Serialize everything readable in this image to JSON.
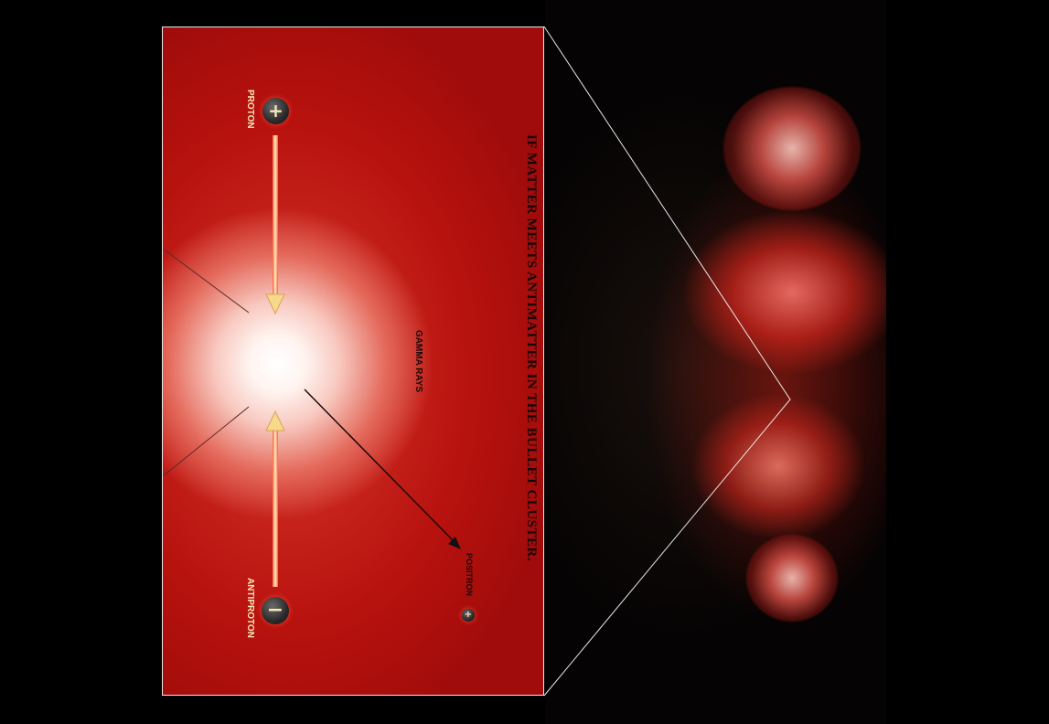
{
  "diagram": {
    "title": "IF MATTER MEETS ANTIMATTER IN THE BULLET CLUSTER.",
    "labels": {
      "proton": "PROTON",
      "antiproton": "ANTIPROTON",
      "gamma_rays": "GAMMA RAYS",
      "positron": "POSITRON"
    },
    "particles": {
      "proton_symbol": "+",
      "antiproton_symbol": "−",
      "positron_symbol": "+"
    }
  },
  "colors": {
    "panel_red": "#b8120e",
    "arrow_gold": "#f6d98a",
    "border": "#e9e9e9",
    "background": "#000000"
  }
}
